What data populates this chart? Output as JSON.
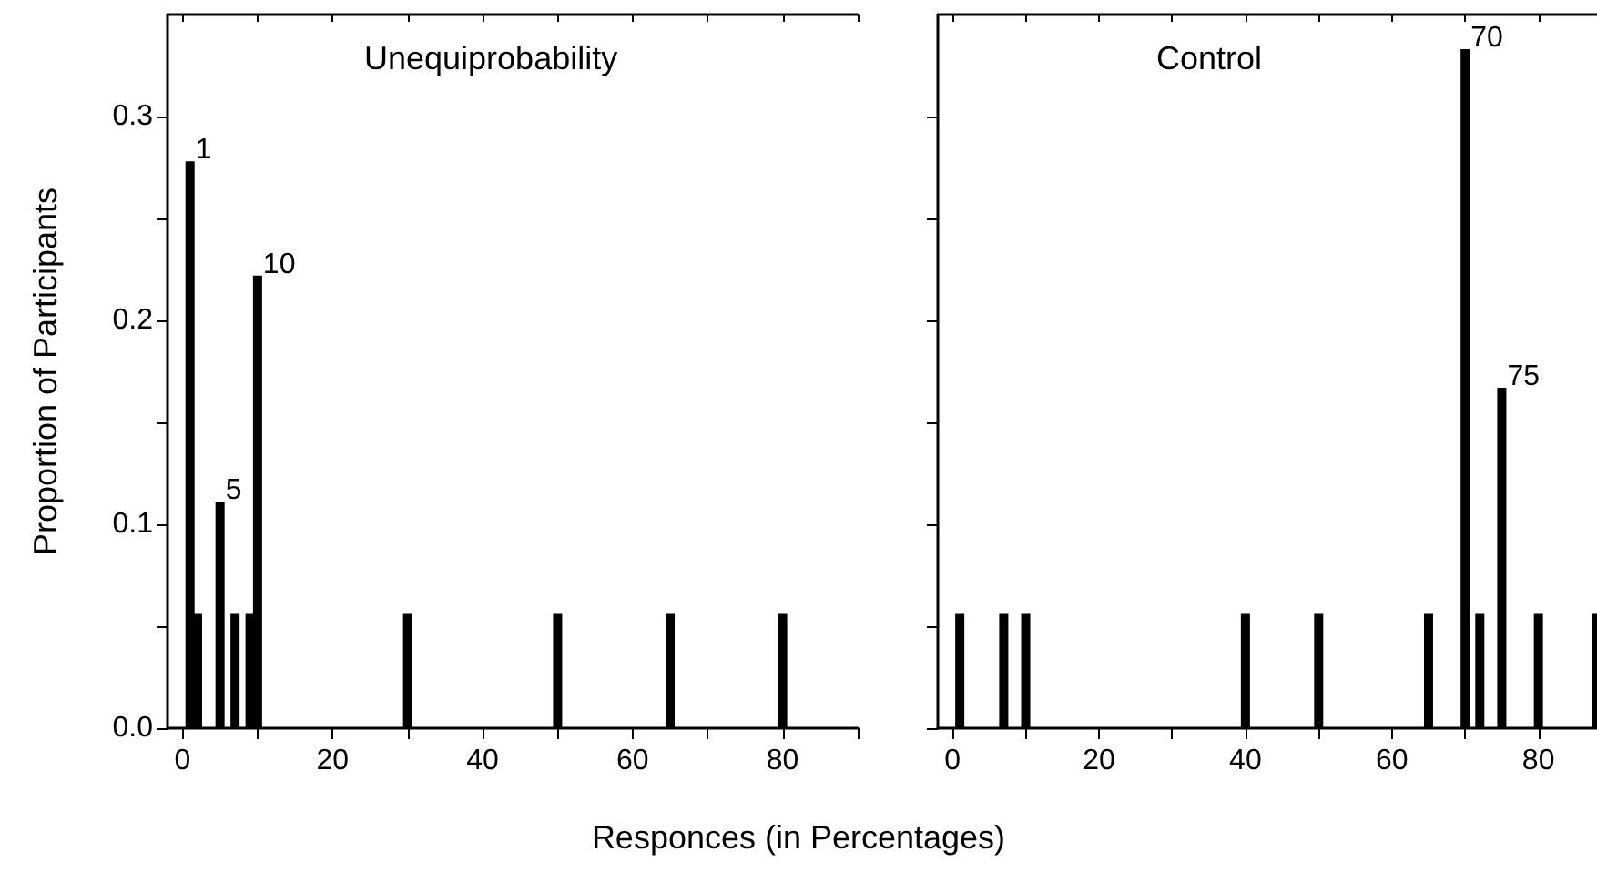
{
  "chart_data": [
    {
      "type": "bar",
      "title": "Unequiprobability",
      "ylabel": "Proportion of Participants",
      "xlabel": "Responces (in Percentages)",
      "x": [
        1,
        2,
        5,
        7,
        9,
        10,
        30,
        50,
        65,
        80
      ],
      "values": [
        0.278,
        0.056,
        0.111,
        0.056,
        0.056,
        0.222,
        0.056,
        0.056,
        0.056,
        0.056
      ],
      "color": "#000000",
      "xlim": [
        -2,
        90
      ],
      "xticks": [
        0,
        {
          "value": 10,
          "label": null
        },
        20,
        {
          "value": 30,
          "label": null
        },
        40,
        {
          "value": 50,
          "label": null
        },
        60,
        {
          "value": 70,
          "label": null
        },
        80,
        {
          "value": 90,
          "label": null
        }
      ],
      "ylim": [
        0,
        0.35
      ],
      "yticks": [
        {
          "value": 0,
          "label": "0.0"
        },
        {
          "value": 0.05,
          "label": null
        },
        0.1,
        {
          "value": 0.15,
          "label": null
        },
        0.2,
        {
          "value": 0.25,
          "label": null
        },
        0.3
      ],
      "annotations": [
        {
          "text": "1",
          "x": 1,
          "y": 0.278
        },
        {
          "text": "5",
          "x": 5,
          "y": 0.111
        },
        {
          "text": "10",
          "x": 10,
          "y": 0.222
        }
      ]
    },
    {
      "type": "bar",
      "title": "Control",
      "x": [
        1,
        7,
        10,
        40,
        50,
        65,
        70,
        72,
        75,
        80,
        88
      ],
      "values": [
        0.056,
        0.056,
        0.056,
        0.056,
        0.056,
        0.056,
        0.333,
        0.056,
        0.167,
        0.056,
        0.056
      ],
      "color": "#000000",
      "xlim": [
        -2,
        88
      ],
      "xticks": [
        0,
        {
          "value": 10,
          "label": null
        },
        20,
        {
          "value": 30,
          "label": null
        },
        40,
        {
          "value": 50,
          "label": null
        },
        60,
        {
          "value": 70,
          "label": null
        },
        80
      ],
      "ylim": [
        0,
        0.35
      ],
      "yticks": [
        {
          "value": 0,
          "label": null
        },
        {
          "value": 0.05,
          "label": null
        },
        {
          "value": 0.1,
          "label": null
        },
        {
          "value": 0.15,
          "label": null
        },
        {
          "value": 0.2,
          "label": null
        },
        {
          "value": 0.25,
          "label": null
        },
        {
          "value": 0.3,
          "label": null
        }
      ],
      "tick_labels": "x",
      "annotations": [
        {
          "text": "70",
          "x": 70,
          "y": 0.333
        },
        {
          "text": "75",
          "x": 75,
          "y": 0.167
        }
      ]
    }
  ]
}
